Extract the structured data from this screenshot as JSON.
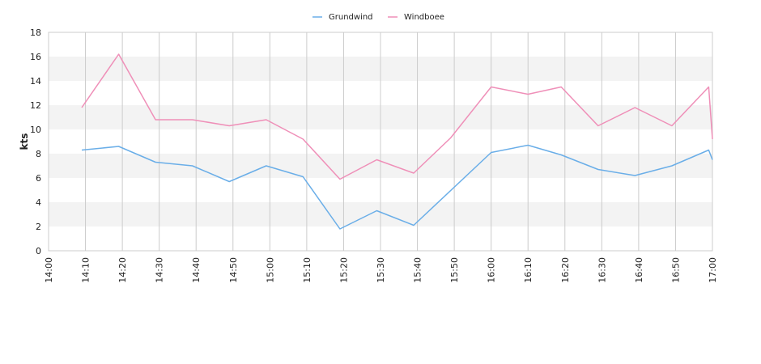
{
  "chart_data": {
    "type": "line",
    "title": "",
    "xlabel": "",
    "ylabel": "kts",
    "ylim": [
      0,
      18
    ],
    "yticks": [
      0,
      2,
      4,
      6,
      8,
      10,
      12,
      14,
      16,
      18
    ],
    "xlim": [
      "14:00",
      "17:00"
    ],
    "xticks": [
      "14:00",
      "14:10",
      "14:20",
      "14:30",
      "14:40",
      "14:50",
      "15:00",
      "15:10",
      "15:20",
      "15:30",
      "15:40",
      "15:50",
      "16:00",
      "16:10",
      "16:20",
      "16:30",
      "16:40",
      "16:50",
      "17:00"
    ],
    "grid": "vertical lines + alternating horizontal bands",
    "legend_position": "top-center",
    "series": [
      {
        "name": "Grundwind",
        "color": "#6aaee8",
        "points": [
          [
            "14:09",
            8.3
          ],
          [
            "14:19",
            8.6
          ],
          [
            "14:29",
            7.3
          ],
          [
            "14:39",
            7.0
          ],
          [
            "14:49",
            5.7
          ],
          [
            "14:59",
            7.0
          ],
          [
            "15:09",
            6.1
          ],
          [
            "15:19",
            1.8
          ],
          [
            "15:29",
            3.3
          ],
          [
            "15:39",
            2.1
          ],
          [
            "16:00",
            8.1
          ],
          [
            "16:10",
            8.7
          ],
          [
            "16:19",
            7.9
          ],
          [
            "16:29",
            6.7
          ],
          [
            "16:39",
            6.2
          ],
          [
            "16:49",
            7.0
          ],
          [
            "16:59",
            8.3
          ],
          [
            "17:00",
            7.5
          ]
        ]
      },
      {
        "name": "Windboee",
        "color": "#ef8fb8",
        "points": [
          [
            "14:09",
            11.8
          ],
          [
            "14:19",
            16.2
          ],
          [
            "14:29",
            10.8
          ],
          [
            "14:39",
            10.8
          ],
          [
            "14:49",
            10.3
          ],
          [
            "14:59",
            10.8
          ],
          [
            "15:09",
            9.2
          ],
          [
            "15:19",
            5.9
          ],
          [
            "15:29",
            7.5
          ],
          [
            "15:39",
            6.4
          ],
          [
            "15:49",
            9.3
          ],
          [
            "16:00",
            13.5
          ],
          [
            "16:10",
            12.9
          ],
          [
            "16:19",
            13.5
          ],
          [
            "16:29",
            10.3
          ],
          [
            "16:39",
            11.8
          ],
          [
            "16:49",
            10.3
          ],
          [
            "16:59",
            13.5
          ],
          [
            "17:00",
            9.2
          ]
        ]
      }
    ]
  }
}
